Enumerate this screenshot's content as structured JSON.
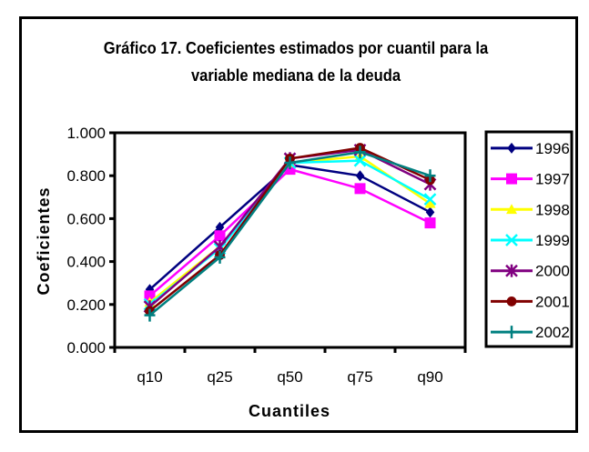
{
  "chart_data": {
    "type": "line",
    "title_lines": [
      "Gráfico 17. Coeficientes estimados por cuantil para la",
      "variable mediana de la deuda"
    ],
    "xlabel": "Cuantiles",
    "ylabel": "Coeficientes",
    "categories": [
      "q10",
      "q25",
      "q50",
      "q75",
      "q90"
    ],
    "ylim": [
      0,
      1
    ],
    "yticks": [
      0,
      0.2,
      0.4,
      0.6,
      0.8,
      1.0
    ],
    "ytick_labels": [
      "0.000",
      "0.200",
      "0.400",
      "0.600",
      "0.800",
      "1.000"
    ],
    "grid": false,
    "legend_position": "right",
    "series": [
      {
        "name": "1996",
        "color": "#000080",
        "marker": "diamond",
        "values": [
          0.27,
          0.56,
          0.85,
          0.8,
          0.63
        ]
      },
      {
        "name": "1997",
        "color": "#FF00FF",
        "marker": "square",
        "values": [
          0.24,
          0.52,
          0.83,
          0.74,
          0.58
        ]
      },
      {
        "name": "1998",
        "color": "#FFFF00",
        "marker": "triangle",
        "values": [
          0.21,
          0.47,
          0.86,
          0.89,
          0.67
        ]
      },
      {
        "name": "1999",
        "color": "#00FFFF",
        "marker": "x",
        "values": [
          0.2,
          0.46,
          0.86,
          0.87,
          0.69
        ]
      },
      {
        "name": "2000",
        "color": "#800080",
        "marker": "star",
        "values": [
          0.19,
          0.47,
          0.88,
          0.92,
          0.76
        ]
      },
      {
        "name": "2001",
        "color": "#800000",
        "marker": "circle",
        "values": [
          0.17,
          0.43,
          0.88,
          0.93,
          0.78
        ]
      },
      {
        "name": "2002",
        "color": "#008080",
        "marker": "plus",
        "values": [
          0.15,
          0.42,
          0.86,
          0.91,
          0.8
        ]
      }
    ]
  }
}
